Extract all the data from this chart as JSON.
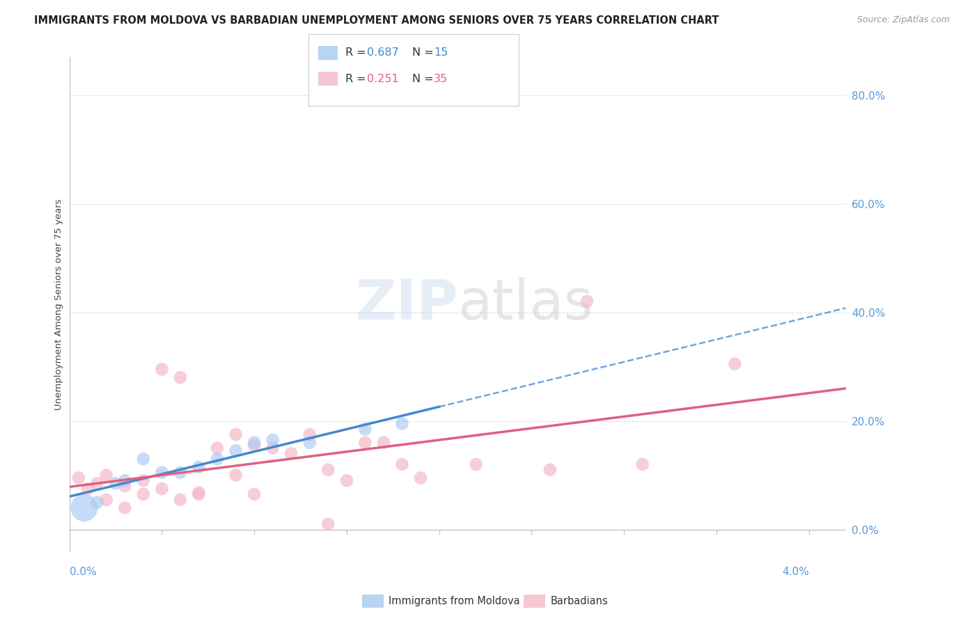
{
  "title": "IMMIGRANTS FROM MOLDOVA VS BARBADIAN UNEMPLOYMENT AMONG SENIORS OVER 75 YEARS CORRELATION CHART",
  "source": "Source: ZipAtlas.com",
  "ylabel": "Unemployment Among Seniors over 75 years",
  "blue_points": [
    [
      0.0008,
      0.04
    ],
    [
      0.0015,
      0.05
    ],
    [
      0.0025,
      0.085
    ],
    [
      0.003,
      0.09
    ],
    [
      0.004,
      0.13
    ],
    [
      0.005,
      0.105
    ],
    [
      0.006,
      0.105
    ],
    [
      0.007,
      0.115
    ],
    [
      0.008,
      0.13
    ],
    [
      0.009,
      0.145
    ],
    [
      0.01,
      0.16
    ],
    [
      0.011,
      0.165
    ],
    [
      0.013,
      0.16
    ],
    [
      0.016,
      0.185
    ],
    [
      0.018,
      0.195
    ]
  ],
  "pink_points": [
    [
      0.0005,
      0.095
    ],
    [
      0.001,
      0.075
    ],
    [
      0.0015,
      0.085
    ],
    [
      0.002,
      0.1
    ],
    [
      0.002,
      0.055
    ],
    [
      0.003,
      0.08
    ],
    [
      0.003,
      0.04
    ],
    [
      0.004,
      0.065
    ],
    [
      0.004,
      0.09
    ],
    [
      0.005,
      0.075
    ],
    [
      0.005,
      0.295
    ],
    [
      0.006,
      0.055
    ],
    [
      0.006,
      0.28
    ],
    [
      0.007,
      0.068
    ],
    [
      0.007,
      0.065
    ],
    [
      0.008,
      0.15
    ],
    [
      0.009,
      0.1
    ],
    [
      0.009,
      0.175
    ],
    [
      0.01,
      0.065
    ],
    [
      0.01,
      0.155
    ],
    [
      0.011,
      0.15
    ],
    [
      0.012,
      0.14
    ],
    [
      0.013,
      0.175
    ],
    [
      0.014,
      0.11
    ],
    [
      0.014,
      0.01
    ],
    [
      0.015,
      0.09
    ],
    [
      0.016,
      0.16
    ],
    [
      0.017,
      0.16
    ],
    [
      0.018,
      0.12
    ],
    [
      0.019,
      0.095
    ],
    [
      0.022,
      0.12
    ],
    [
      0.026,
      0.11
    ],
    [
      0.028,
      0.42
    ],
    [
      0.031,
      0.12
    ],
    [
      0.036,
      0.305
    ]
  ],
  "xlim": [
    0.0,
    0.042
  ],
  "ylim": [
    -0.04,
    0.87
  ],
  "ytick_positions": [
    0.0,
    0.2,
    0.4,
    0.6,
    0.8
  ],
  "background_color": "#FFFFFF",
  "grid_color": "#DDDDDD",
  "blue_color": "#A8C8F0",
  "pink_color": "#F5B8C8",
  "blue_line_color": "#4488CC",
  "pink_line_color": "#E06080",
  "right_axis_color": "#5599DD",
  "point_size": 180,
  "large_point_size": 800
}
